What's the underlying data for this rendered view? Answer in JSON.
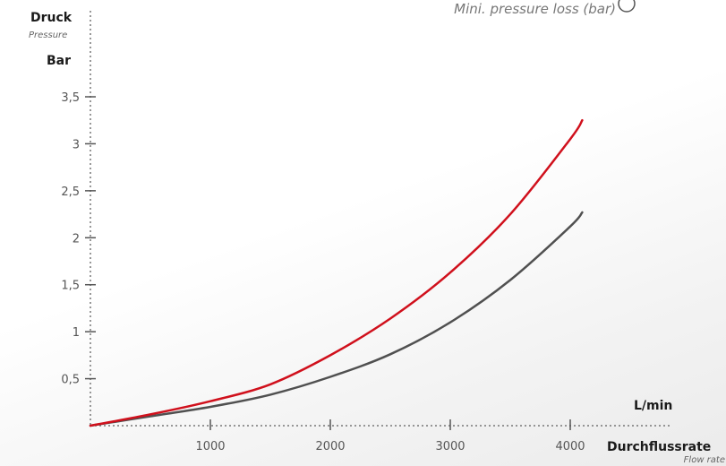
{
  "colors": {
    "series_1": "#d0101c",
    "series_2": "#505050",
    "axis": "#777777"
  },
  "chart_data": {
    "type": "line",
    "title": "Mini. pressure loss (bar)",
    "y_label_primary": "Druck",
    "y_label_secondary": "Pressure",
    "y_unit": "Bar",
    "x_label_primary": "Durchflussrate",
    "x_label_secondary": "Flow rate",
    "x_unit": "L/min",
    "xlim": [
      0,
      4000
    ],
    "ylim": [
      0,
      3.5
    ],
    "x_ticks": [
      1000,
      2000,
      3000,
      4000
    ],
    "x_tick_labels": [
      "1000",
      "2000",
      "3000",
      "4000"
    ],
    "y_ticks": [
      0.5,
      1,
      1.5,
      2,
      2.5,
      3,
      3.5
    ],
    "y_tick_labels": [
      "0,5",
      "1",
      "1,5",
      "2",
      "2,5",
      "3",
      "3,5"
    ],
    "grid": false,
    "series": [
      {
        "color": "#d0101c",
        "x": [
          0,
          500,
          1000,
          1500,
          2000,
          2500,
          3000,
          3500,
          4000,
          4100
        ],
        "y": [
          0,
          0.12,
          0.26,
          0.44,
          0.75,
          1.14,
          1.63,
          2.25,
          3.05,
          3.25
        ]
      },
      {
        "color": "#505050",
        "x": [
          0,
          500,
          1000,
          1500,
          2000,
          2500,
          3000,
          3500,
          4000,
          4100
        ],
        "y": [
          0,
          0.1,
          0.2,
          0.33,
          0.52,
          0.76,
          1.1,
          1.55,
          2.12,
          2.27
        ]
      }
    ]
  }
}
